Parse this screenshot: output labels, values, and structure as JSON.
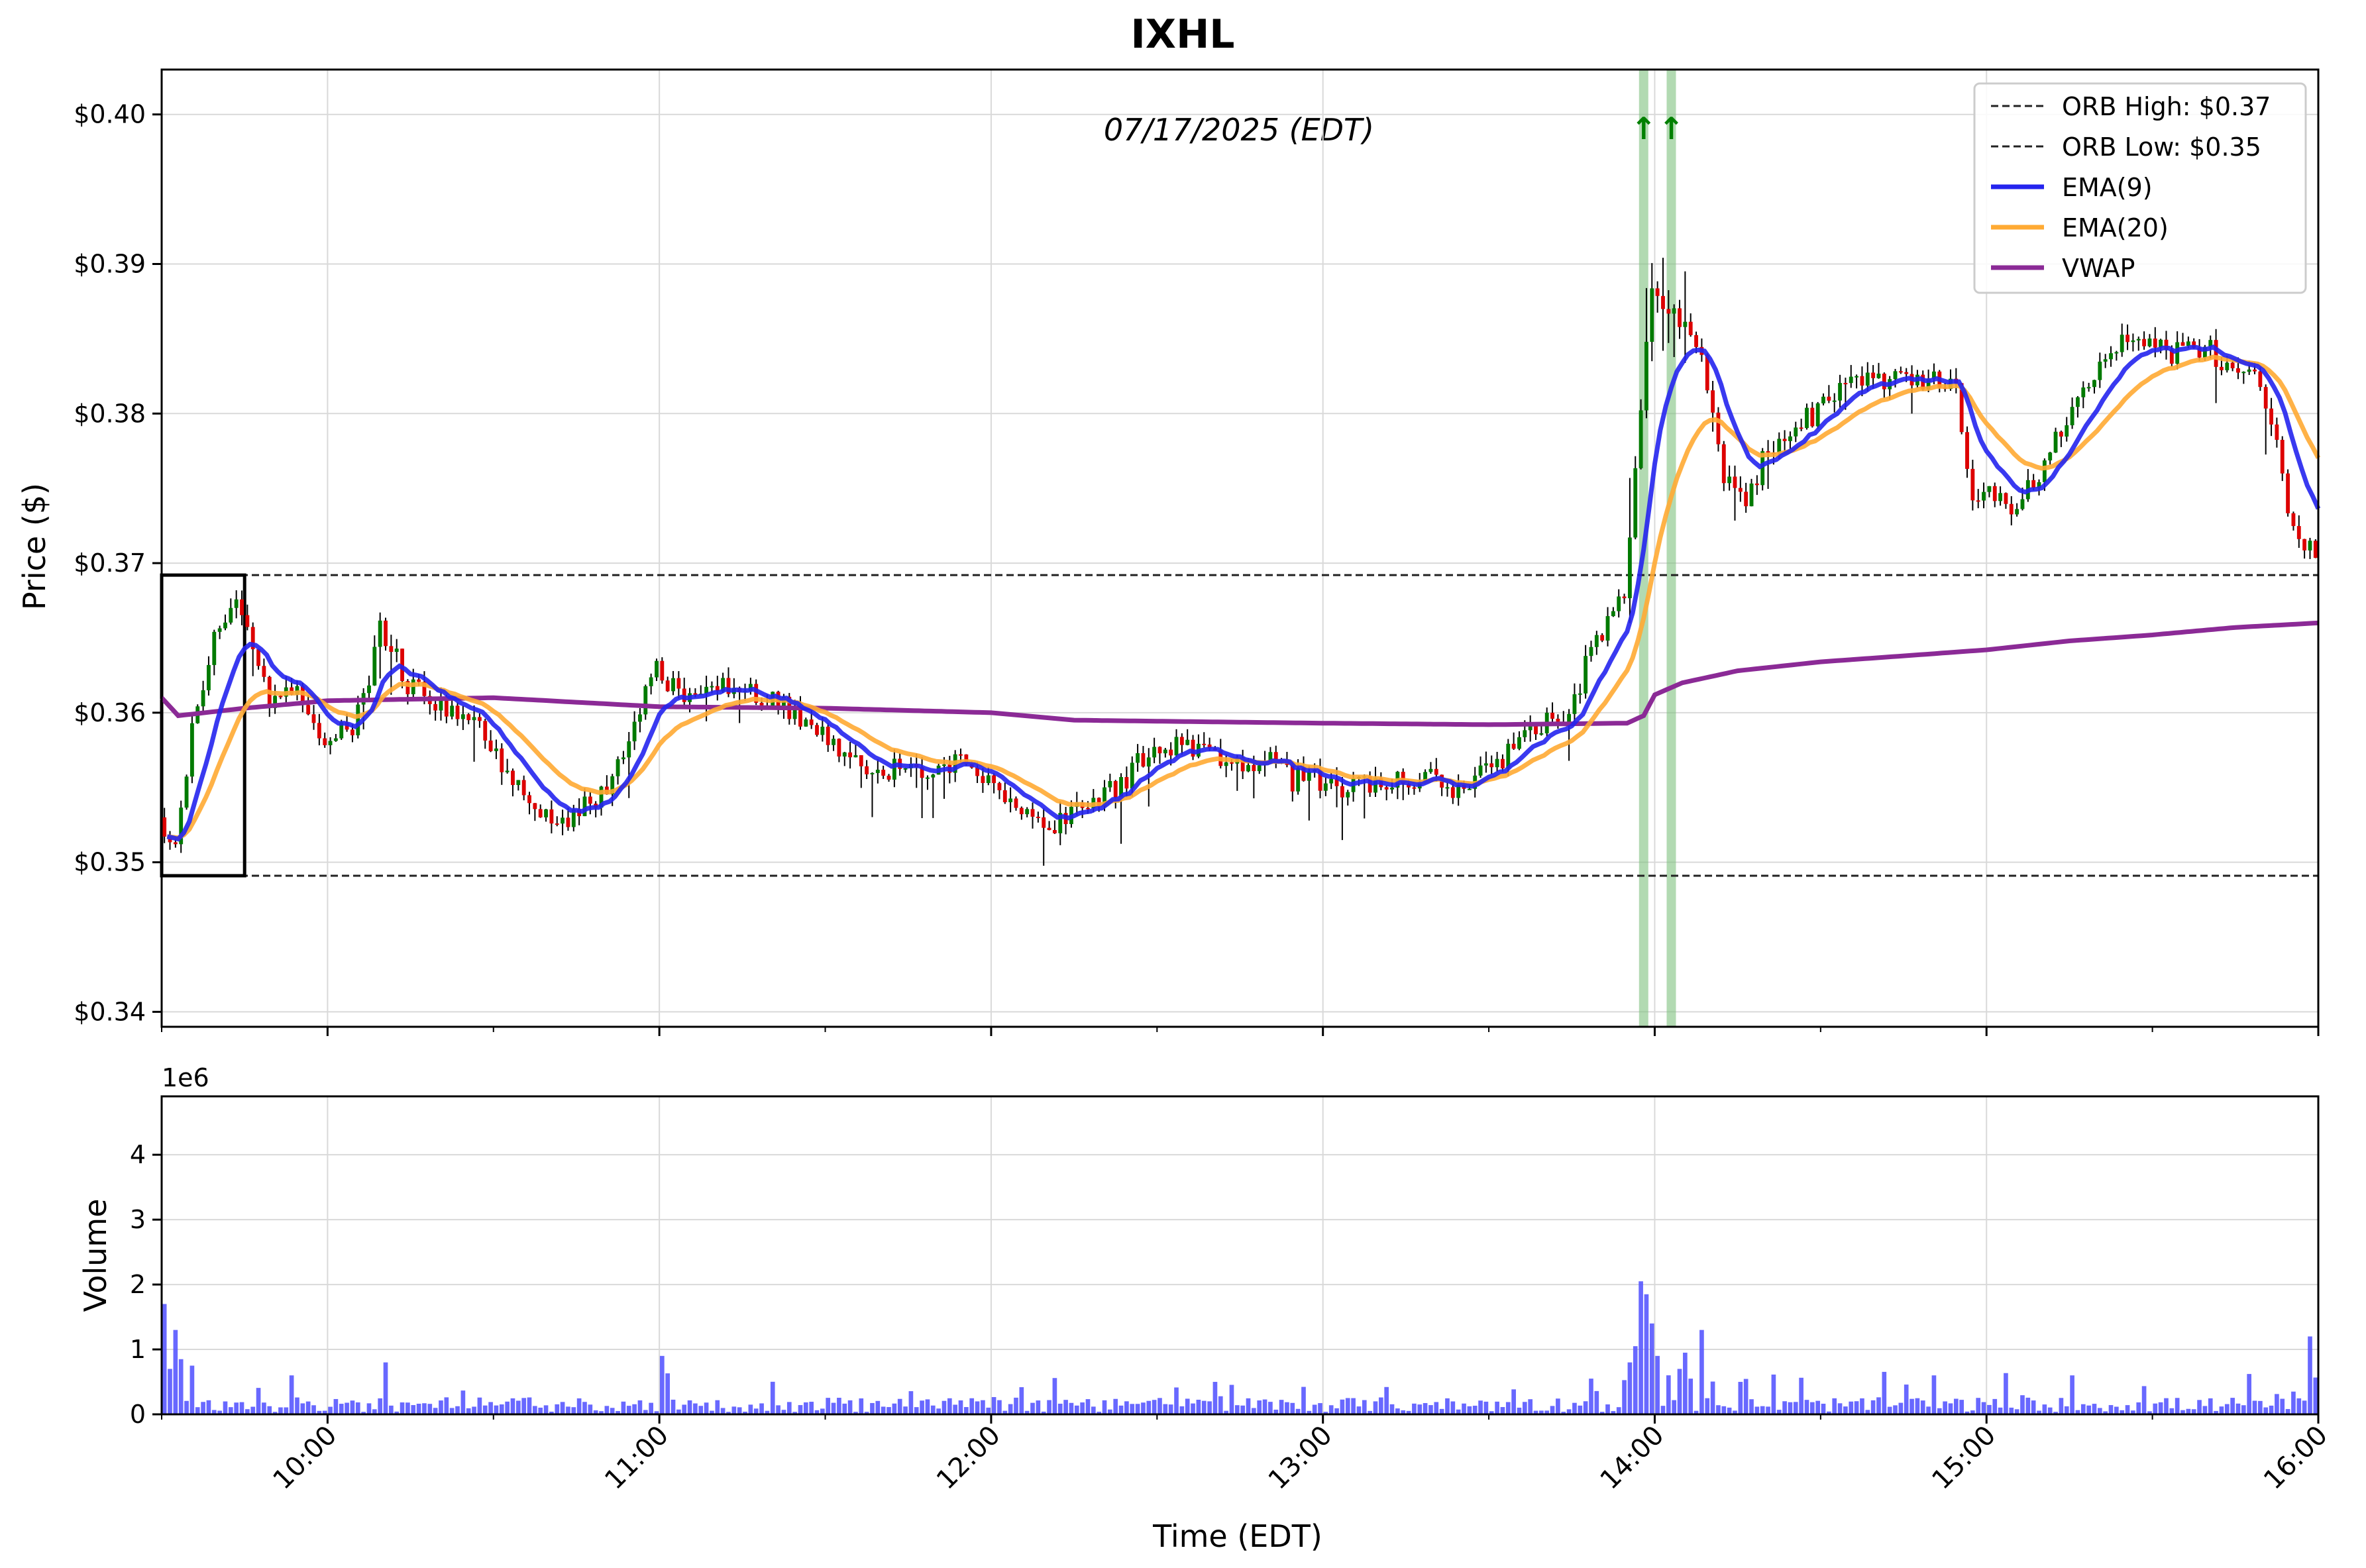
{
  "chart_data": [
    {
      "panel": "price",
      "type": "candlestick",
      "title": "IXHL",
      "annotation": "07/17/2025 (EDT)",
      "ylabel": "Price ($)",
      "ylim": [
        0.339,
        0.403
      ],
      "yticks": [
        0.34,
        0.35,
        0.36,
        0.37,
        0.38,
        0.39,
        0.4
      ],
      "ytick_labels": [
        "$0.34",
        "$0.35",
        "$0.36",
        "$0.37",
        "$0.38",
        "$0.39",
        "$0.40"
      ],
      "xlim": [
        "09:30",
        "16:00"
      ],
      "grid": true,
      "legend_position": "top-right",
      "colors": {
        "up": "#007a00",
        "down": "#dd0000",
        "ema9": "#2424ee",
        "ema20": "#ffaa33",
        "vwap": "#8b2a96",
        "orb": "#222222",
        "signal": "#7fc27f",
        "arrow": "#008000"
      },
      "orb": {
        "high": 0.3692,
        "low": 0.3491,
        "box_start": "09:30",
        "box_end": "09:45"
      },
      "signals": [
        {
          "time": "13:58",
          "label": "↑"
        },
        {
          "time": "14:03",
          "label": "↑"
        }
      ],
      "legend": [
        {
          "label": "ORB High: $0.37",
          "style": "dashed",
          "color": "#222222"
        },
        {
          "label": "ORB Low: $0.35",
          "style": "dashed",
          "color": "#222222"
        },
        {
          "label": "EMA(9)",
          "style": "solid",
          "color": "#2424ee"
        },
        {
          "label": "EMA(20)",
          "style": "solid",
          "color": "#ffaa33"
        },
        {
          "label": "VWAP",
          "style": "solid",
          "color": "#8b2a96"
        }
      ],
      "anchor_points": [
        [
          "09:30",
          0.353
        ],
        [
          "09:33",
          0.351
        ],
        [
          "09:36",
          0.359
        ],
        [
          "09:40",
          0.365
        ],
        [
          "09:44",
          0.367
        ],
        [
          "09:47",
          0.364
        ],
        [
          "09:50",
          0.361
        ],
        [
          "09:55",
          0.362
        ],
        [
          "10:00",
          0.358
        ],
        [
          "10:05",
          0.359
        ],
        [
          "10:08",
          0.362
        ],
        [
          "10:10",
          0.366
        ],
        [
          "10:15",
          0.362
        ],
        [
          "10:20",
          0.3605
        ],
        [
          "10:25",
          0.36
        ],
        [
          "10:30",
          0.358
        ],
        [
          "10:35",
          0.355
        ],
        [
          "10:40",
          0.353
        ],
        [
          "10:45",
          0.353
        ],
        [
          "10:50",
          0.3545
        ],
        [
          "10:55",
          0.358
        ],
        [
          "11:00",
          0.363
        ],
        [
          "11:05",
          0.361
        ],
        [
          "11:10",
          0.362
        ],
        [
          "11:15",
          0.362
        ],
        [
          "11:20",
          0.361
        ],
        [
          "11:25",
          0.36
        ],
        [
          "11:30",
          0.3585
        ],
        [
          "11:35",
          0.3565
        ],
        [
          "11:40",
          0.356
        ],
        [
          "11:45",
          0.3565
        ],
        [
          "11:50",
          0.356
        ],
        [
          "11:55",
          0.357
        ],
        [
          "12:00",
          0.3555
        ],
        [
          "12:05",
          0.354
        ],
        [
          "12:10",
          0.352
        ],
        [
          "12:15",
          0.353
        ],
        [
          "12:20",
          0.3545
        ],
        [
          "12:25",
          0.3555
        ],
        [
          "12:30",
          0.358
        ],
        [
          "12:35",
          0.3575
        ],
        [
          "12:40",
          0.357
        ],
        [
          "12:45",
          0.3565
        ],
        [
          "12:50",
          0.357
        ],
        [
          "12:55",
          0.3555
        ],
        [
          "13:00",
          0.3555
        ],
        [
          "13:05",
          0.355
        ],
        [
          "13:10",
          0.3555
        ],
        [
          "13:15",
          0.3555
        ],
        [
          "13:20",
          0.3555
        ],
        [
          "13:25",
          0.355
        ],
        [
          "13:30",
          0.356
        ],
        [
          "13:35",
          0.3575
        ],
        [
          "13:40",
          0.359
        ],
        [
          "13:45",
          0.36
        ],
        [
          "13:50",
          0.365
        ],
        [
          "13:55",
          0.368
        ],
        [
          "13:58",
          0.38
        ],
        [
          "14:00",
          0.388
        ],
        [
          "14:04",
          0.387
        ],
        [
          "14:07",
          0.3855
        ],
        [
          "14:10",
          0.382
        ],
        [
          "14:13",
          0.376
        ],
        [
          "14:17",
          0.374
        ],
        [
          "14:20",
          0.377
        ],
        [
          "14:25",
          0.379
        ],
        [
          "14:30",
          0.38
        ],
        [
          "14:35",
          0.382
        ],
        [
          "14:40",
          0.3825
        ],
        [
          "14:45",
          0.382
        ],
        [
          "14:50",
          0.3825
        ],
        [
          "14:55",
          0.382
        ],
        [
          "14:58",
          0.374
        ],
        [
          "15:00",
          0.3745
        ],
        [
          "15:05",
          0.374
        ],
        [
          "15:10",
          0.376
        ],
        [
          "15:15",
          0.38
        ],
        [
          "15:20",
          0.383
        ],
        [
          "15:25",
          0.385
        ],
        [
          "15:30",
          0.3845
        ],
        [
          "15:35",
          0.384
        ],
        [
          "15:40",
          0.3845
        ],
        [
          "15:45",
          0.383
        ],
        [
          "15:50",
          0.3825
        ],
        [
          "15:53",
          0.378
        ],
        [
          "15:56",
          0.372
        ],
        [
          "16:00",
          0.371
        ]
      ],
      "vwap_points": [
        [
          "09:30",
          0.361
        ],
        [
          "09:33",
          0.3598
        ],
        [
          "09:45",
          0.3603
        ],
        [
          "10:00",
          0.3608
        ],
        [
          "10:30",
          0.361
        ],
        [
          "11:00",
          0.3604
        ],
        [
          "11:30",
          0.3603
        ],
        [
          "12:00",
          0.36
        ],
        [
          "12:15",
          0.3595
        ],
        [
          "13:00",
          0.3593
        ],
        [
          "13:30",
          0.3592
        ],
        [
          "13:55",
          0.3593
        ],
        [
          "13:58",
          0.3598
        ],
        [
          "14:00",
          0.3612
        ],
        [
          "14:05",
          0.362
        ],
        [
          "14:15",
          0.3628
        ],
        [
          "14:30",
          0.3634
        ],
        [
          "15:00",
          0.3642
        ],
        [
          "15:15",
          0.3648
        ],
        [
          "15:30",
          0.3652
        ],
        [
          "15:45",
          0.3657
        ],
        [
          "16:00",
          0.366
        ]
      ]
    },
    {
      "panel": "volume",
      "type": "bar",
      "ylabel": "Volume",
      "xlabel": "Time (EDT)",
      "offset_label": "1e6",
      "ylim": [
        0,
        4.9
      ],
      "yticks": [
        0,
        1,
        2,
        3,
        4
      ],
      "ytick_labels": [
        "0",
        "1",
        "2",
        "3",
        "4"
      ],
      "xticks": [
        "10:00",
        "11:00",
        "12:00",
        "13:00",
        "14:00",
        "15:00",
        "16:00"
      ],
      "grid": true,
      "color": "#4d4dff",
      "spikes_millions": [
        [
          "09:30",
          1.7
        ],
        [
          "09:31",
          0.7
        ],
        [
          "09:32",
          1.3
        ],
        [
          "09:33",
          0.85
        ],
        [
          "09:35",
          0.75
        ],
        [
          "09:53",
          0.6
        ],
        [
          "10:10",
          0.8
        ],
        [
          "11:00",
          0.9
        ],
        [
          "12:40",
          0.5
        ],
        [
          "13:48",
          0.55
        ],
        [
          "13:55",
          0.8
        ],
        [
          "13:56",
          1.05
        ],
        [
          "13:57",
          2.05
        ],
        [
          "13:58",
          1.85
        ],
        [
          "13:59",
          1.4
        ],
        [
          "14:00",
          0.9
        ],
        [
          "14:04",
          0.7
        ],
        [
          "14:05",
          0.95
        ],
        [
          "14:06",
          0.55
        ],
        [
          "14:08",
          1.3
        ],
        [
          "14:15",
          0.5
        ],
        [
          "14:50",
          0.6
        ],
        [
          "15:15",
          0.6
        ],
        [
          "15:55",
          0.35
        ],
        [
          "15:58",
          1.2
        ]
      ],
      "baseline_millions": 0.15
    }
  ]
}
